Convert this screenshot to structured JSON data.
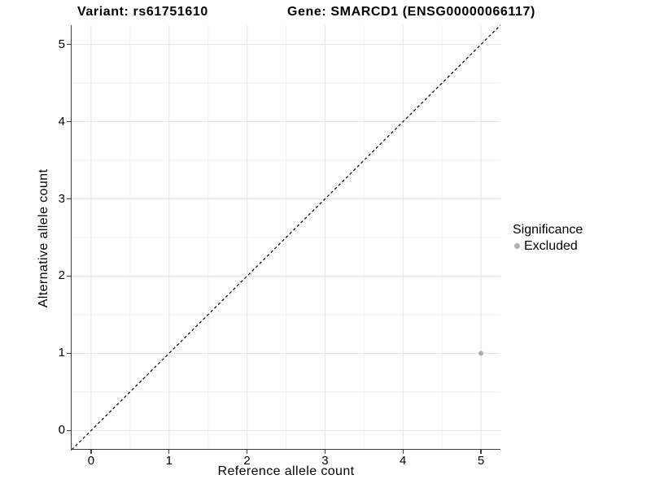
{
  "figure": {
    "title_left": "Variant: rs61751610",
    "title_right": "Gene: SMARCD1 (ENSG00000066117)"
  },
  "axes": {
    "x": {
      "label": "Reference allele count",
      "ticks": [
        0,
        1,
        2,
        3,
        4,
        5
      ],
      "minor_ticks": [
        0.5,
        1.5,
        2.5,
        3.5,
        4.5
      ],
      "range": [
        -0.25,
        5.25
      ]
    },
    "y": {
      "label": "Alternative allele count",
      "ticks": [
        0,
        1,
        2,
        3,
        4,
        5
      ],
      "minor_ticks": [
        0.5,
        1.5,
        2.5,
        3.5,
        4.5
      ],
      "range": [
        -0.25,
        5.25
      ]
    }
  },
  "legend": {
    "title": "Significance",
    "entries": [
      {
        "label": "Excluded",
        "color": "#aeaeae",
        "marker": "circle"
      }
    ]
  },
  "chart_data": {
    "type": "scatter",
    "title": "Variant: rs61751610 | Gene: SMARCD1 (ENSG00000066117)",
    "xlabel": "Reference allele count",
    "ylabel": "Alternative allele count",
    "xlim": [
      -0.25,
      5.25
    ],
    "ylim": [
      -0.25,
      5.25
    ],
    "grid": true,
    "legend_position": "right",
    "series": [
      {
        "name": "Excluded",
        "color": "#aeaeae",
        "marker": "circle",
        "points": [
          {
            "x": 5,
            "y": 1
          }
        ]
      }
    ],
    "reference_line": {
      "equation": "y = x",
      "style": "dashed",
      "color": "#000000"
    }
  },
  "colors": {
    "grid_major": "#e3e3e3",
    "grid_minor": "#f1f1f1",
    "axis_line": "#3c3c3c",
    "point": "#aeaeae",
    "text": "#000000",
    "background": "#ffffff"
  }
}
